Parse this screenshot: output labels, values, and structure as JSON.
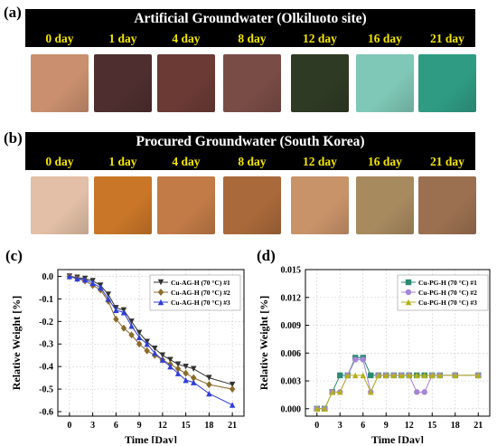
{
  "panels": {
    "a": {
      "letter": "(a)",
      "title": "Artificial Groundwater (Olkiluoto site)",
      "days": [
        "0 day",
        "1 day",
        "4 day",
        "8 day",
        "12 day",
        "16 day",
        "21 day"
      ],
      "colors": [
        "#c98f6e",
        "#4e2e2e",
        "#6b3a35",
        "#7a4c46",
        "#2f3a24",
        "#7fc7b6",
        "#2f9b83"
      ]
    },
    "b": {
      "letter": "(b)",
      "title": "Procured Groundwater (South Korea)",
      "days": [
        "0 day",
        "1 day",
        "4 day",
        "8 day",
        "12 day",
        "16 day",
        "21 day"
      ],
      "colors": [
        "#e2bfa6",
        "#c97628",
        "#c27b47",
        "#a9693a",
        "#c9936a",
        "#a88a5f",
        "#9b7050"
      ]
    },
    "c": {
      "letter": "(c)"
    },
    "d": {
      "letter": "(d)"
    }
  },
  "chart_data": [
    {
      "type": "line",
      "xlabel": "Time [Day]",
      "ylabel": "Relative Weight [%]",
      "xlim": [
        -1.5,
        22.5
      ],
      "ylim": [
        -0.62,
        0.03
      ],
      "xticks": [
        0,
        3,
        6,
        9,
        12,
        15,
        18,
        21
      ],
      "yticks": [
        0.0,
        -0.1,
        -0.2,
        -0.3,
        -0.4,
        -0.5,
        -0.6
      ],
      "ytick_labels": [
        "0.0",
        "-0.1",
        "-0.2",
        "-0.3",
        "-0.4",
        "-0.5",
        "-0.6"
      ],
      "grid": true,
      "legend": "top-right",
      "series": [
        {
          "name": "Cu-AG-H (70 °C) #1",
          "color": "#333333",
          "marker": "triangle-down",
          "x": [
            0,
            1,
            2,
            3,
            4,
            5,
            6,
            7,
            8,
            9,
            10,
            11,
            12,
            13,
            14,
            15,
            16,
            18,
            21
          ],
          "y": [
            0.0,
            -0.005,
            -0.01,
            -0.02,
            -0.04,
            -0.08,
            -0.14,
            -0.15,
            -0.2,
            -0.25,
            -0.29,
            -0.32,
            -0.35,
            -0.37,
            -0.39,
            -0.4,
            -0.41,
            -0.45,
            -0.48
          ]
        },
        {
          "name": "Cu-AG-H (70 °C) #2",
          "color": "#8b6a2a",
          "marker": "diamond",
          "x": [
            0,
            1,
            2,
            3,
            4,
            5,
            6,
            7,
            8,
            9,
            10,
            11,
            12,
            13,
            14,
            15,
            16,
            18,
            21
          ],
          "y": [
            0.0,
            -0.01,
            -0.02,
            -0.04,
            -0.06,
            -0.11,
            -0.19,
            -0.23,
            -0.26,
            -0.3,
            -0.33,
            -0.35,
            -0.37,
            -0.39,
            -0.41,
            -0.43,
            -0.45,
            -0.48,
            -0.5
          ]
        },
        {
          "name": "Cu-AG-H (70 °C) #3",
          "color": "#2f3fd6",
          "marker": "triangle",
          "x": [
            0,
            1,
            2,
            3,
            4,
            5,
            6,
            7,
            8,
            9,
            10,
            11,
            12,
            13,
            14,
            15,
            16,
            18,
            21
          ],
          "y": [
            0.0,
            -0.01,
            -0.015,
            -0.03,
            -0.05,
            -0.1,
            -0.15,
            -0.16,
            -0.22,
            -0.27,
            -0.3,
            -0.34,
            -0.37,
            -0.4,
            -0.43,
            -0.46,
            -0.47,
            -0.52,
            -0.57
          ]
        }
      ]
    },
    {
      "type": "line",
      "xlabel": "Time [Day]",
      "ylabel": "Relative Weight [%]",
      "xlim": [
        -1.5,
        22.5
      ],
      "ylim": [
        -0.0008,
        0.015
      ],
      "xticks": [
        0,
        3,
        6,
        9,
        12,
        15,
        18,
        21
      ],
      "yticks": [
        0.0,
        0.003,
        0.006,
        0.009,
        0.012,
        0.015
      ],
      "ytick_labels": [
        "0.000",
        "0.003",
        "0.006",
        "0.009",
        "0.012",
        "0.015"
      ],
      "grid": true,
      "legend": "top-right",
      "series": [
        {
          "name": "Cu-PG-H (70 °C) #1",
          "color": "#2e8b73",
          "marker": "square",
          "x": [
            0,
            1,
            2,
            3,
            4,
            5,
            6,
            7,
            8,
            9,
            10,
            11,
            12,
            13,
            14,
            15,
            16,
            18,
            21
          ],
          "y": [
            0.0,
            0.0,
            0.0018,
            0.0036,
            0.0036,
            0.0055,
            0.0055,
            0.0036,
            0.0036,
            0.0036,
            0.0036,
            0.0036,
            0.0036,
            0.0036,
            0.0036,
            0.0036,
            0.0036,
            0.0036,
            0.0036
          ]
        },
        {
          "name": "Cu-PG-H (70 °C) #2",
          "color": "#a585d6",
          "marker": "circle",
          "x": [
            0,
            1,
            2,
            3,
            4,
            5,
            6,
            7,
            8,
            9,
            10,
            11,
            12,
            13,
            14,
            15,
            16,
            18,
            21
          ],
          "y": [
            0.0,
            0.0,
            0.0018,
            0.0018,
            0.0036,
            0.0053,
            0.0053,
            0.0018,
            0.0036,
            0.0036,
            0.0036,
            0.0036,
            0.0036,
            0.0018,
            0.0018,
            0.0036,
            0.0036,
            0.0036,
            0.0036
          ]
        },
        {
          "name": "Cu-PG-H (70 °C) #3",
          "color": "#b5b01a",
          "marker": "triangle",
          "x": [
            0,
            1,
            2,
            3,
            4,
            5,
            6,
            7,
            8,
            9,
            10,
            11,
            12,
            13,
            14,
            15,
            16,
            18,
            21
          ],
          "y": [
            0.0,
            0.0,
            0.0018,
            0.0018,
            0.0036,
            0.0036,
            0.0036,
            0.0018,
            0.0036,
            0.0036,
            0.0036,
            0.0036,
            0.0036,
            0.0036,
            0.0036,
            0.0036,
            0.0036,
            0.0036,
            0.0036
          ]
        }
      ]
    }
  ]
}
